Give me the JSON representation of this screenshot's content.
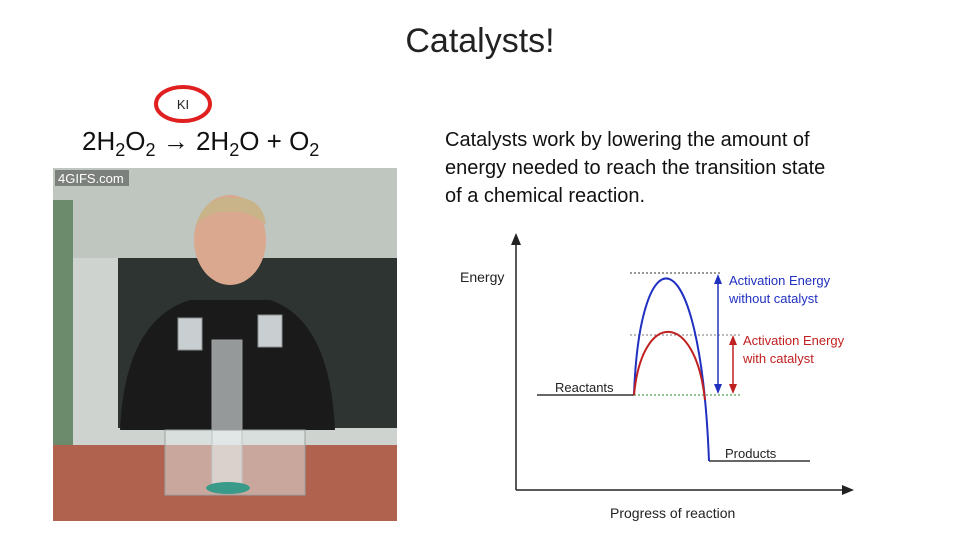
{
  "title": "Catalysts!",
  "catalyst_label": "KI",
  "equation": [
    {
      "text": "2H"
    },
    {
      "text": "2",
      "sub": true
    },
    {
      "text": "O"
    },
    {
      "text": "2",
      "sub": true
    },
    {
      "text": " → 2H"
    },
    {
      "text": "2",
      "sub": true
    },
    {
      "text": "O + O"
    },
    {
      "text": "2",
      "sub": true
    }
  ],
  "photo": {
    "watermark": "4GIFS.com"
  },
  "body_lines": [
    "Catalysts work by lowering the amount of",
    "energy needed to reach the transition state",
    "of a chemical reaction."
  ],
  "diagram": {
    "y_label": "Energy",
    "x_label": "Progress of reaction",
    "reactants": "Reactants",
    "products": "Products",
    "uncatalyzed": [
      "Activation Energy",
      "without catalyst"
    ],
    "catalyzed": [
      "Activation Energy",
      "with catalyst"
    ]
  }
}
